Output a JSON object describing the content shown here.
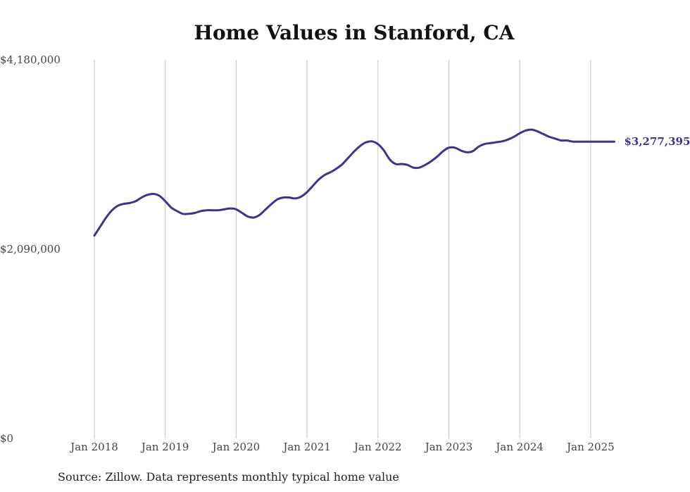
{
  "chart_data": {
    "type": "line",
    "title": "Home Values in Stanford, CA",
    "xlabel": "",
    "ylabel": "",
    "ylim": [
      0,
      4180000
    ],
    "yticks": [
      0,
      2090000,
      4180000
    ],
    "ytick_labels": [
      "$0",
      "$2,090,000",
      "$4,180,000"
    ],
    "xlim": [
      "2018-01",
      "2025-05"
    ],
    "xtick_labels": [
      "Jan 2018",
      "Jan 2019",
      "Jan 2020",
      "Jan 2021",
      "Jan 2022",
      "Jan 2023",
      "Jan 2024",
      "Jan 2025"
    ],
    "grid": "vertical",
    "line_color": "#3d3589",
    "end_label": "$3,277,395",
    "series": [
      {
        "x": [
          "2018-01",
          "2018-02",
          "2018-03",
          "2018-04",
          "2018-05",
          "2018-06",
          "2018-07",
          "2018-08",
          "2018-09",
          "2018-10",
          "2018-11",
          "2018-12",
          "2019-01",
          "2019-02",
          "2019-03",
          "2019-04",
          "2019-05",
          "2019-06",
          "2019-07",
          "2019-08",
          "2019-09",
          "2019-10",
          "2019-11",
          "2019-12",
          "2020-01",
          "2020-02",
          "2020-03",
          "2020-04",
          "2020-05",
          "2020-06",
          "2020-07",
          "2020-08",
          "2020-09",
          "2020-10",
          "2020-11",
          "2020-12",
          "2021-01",
          "2021-02",
          "2021-03",
          "2021-04",
          "2021-05",
          "2021-06",
          "2021-07",
          "2021-08",
          "2021-09",
          "2021-10",
          "2021-11",
          "2021-12",
          "2022-01",
          "2022-02",
          "2022-03",
          "2022-04",
          "2022-05",
          "2022-06",
          "2022-07",
          "2022-08",
          "2022-09",
          "2022-10",
          "2022-11",
          "2022-12",
          "2023-01",
          "2023-02",
          "2023-03",
          "2023-04",
          "2023-05",
          "2023-06",
          "2023-07",
          "2023-08",
          "2023-09",
          "2023-10",
          "2023-11",
          "2023-12",
          "2024-01",
          "2024-02",
          "2024-03",
          "2024-04",
          "2024-05",
          "2024-06",
          "2024-07",
          "2024-08",
          "2024-09",
          "2024-10",
          "2024-11",
          "2024-12",
          "2025-01",
          "2025-02",
          "2025-03",
          "2025-04",
          "2025-05"
        ],
        "values": [
          2240000,
          2340000,
          2440000,
          2520000,
          2570000,
          2590000,
          2600000,
          2620000,
          2660000,
          2690000,
          2700000,
          2680000,
          2620000,
          2550000,
          2510000,
          2480000,
          2480000,
          2490000,
          2510000,
          2520000,
          2520000,
          2520000,
          2530000,
          2540000,
          2530000,
          2490000,
          2450000,
          2440000,
          2470000,
          2530000,
          2590000,
          2640000,
          2660000,
          2660000,
          2650000,
          2670000,
          2720000,
          2790000,
          2860000,
          2910000,
          2940000,
          2980000,
          3030000,
          3100000,
          3170000,
          3230000,
          3270000,
          3280000,
          3250000,
          3180000,
          3080000,
          3030000,
          3030000,
          3020000,
          2990000,
          2990000,
          3020000,
          3060000,
          3110000,
          3170000,
          3210000,
          3210000,
          3180000,
          3160000,
          3170000,
          3220000,
          3250000,
          3260000,
          3270000,
          3280000,
          3300000,
          3330000,
          3370000,
          3400000,
          3410000,
          3390000,
          3360000,
          3330000,
          3310000,
          3290000,
          3290000,
          3277395,
          3277395,
          3277395,
          3277395,
          3277395,
          3277395,
          3277395,
          3277395
        ]
      }
    ]
  },
  "source_note": "Source: Zillow. Data represents monthly typical home value"
}
